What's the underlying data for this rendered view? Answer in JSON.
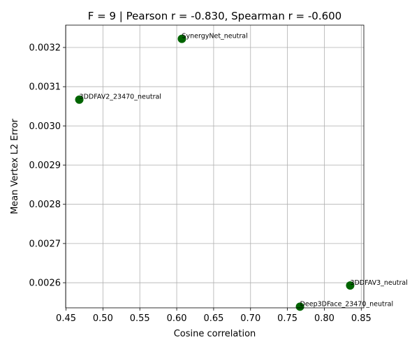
{
  "chart_data": {
    "type": "scatter",
    "title": "F = 9 | Pearson r = -0.830, Spearman r = -0.600",
    "xlabel": "Cosine correlation",
    "ylabel": "Mean Vertex L2 Error",
    "xlim": [
      0.4495,
      0.8535
    ],
    "ylim": [
      0.002536,
      0.003257
    ],
    "xticks": [
      0.45,
      0.5,
      0.55,
      0.6,
      0.65,
      0.7,
      0.75,
      0.8,
      0.85
    ],
    "xtick_labels": [
      "0.45",
      "0.50",
      "0.55",
      "0.60",
      "0.65",
      "0.70",
      "0.75",
      "0.80",
      "0.85"
    ],
    "yticks": [
      0.0026,
      0.0027,
      0.0028,
      0.0029,
      0.003,
      0.0031,
      0.0032
    ],
    "ytick_labels": [
      "0.0026",
      "0.0027",
      "0.0028",
      "0.0029",
      "0.0030",
      "0.0031",
      "0.0032"
    ],
    "grid": true,
    "marker_color": "#006400",
    "points": [
      {
        "label": "SynergyNet_neutral",
        "x": 0.607,
        "y": 0.003222
      },
      {
        "label": "3DDFAV2_23470_neutral",
        "x": 0.468,
        "y": 0.003067
      },
      {
        "label": "3DDFAV3_neutral",
        "x": 0.835,
        "y": 0.002593
      },
      {
        "label": "Deep3DFace_23470_neutral",
        "x": 0.767,
        "y": 0.002539
      }
    ]
  }
}
